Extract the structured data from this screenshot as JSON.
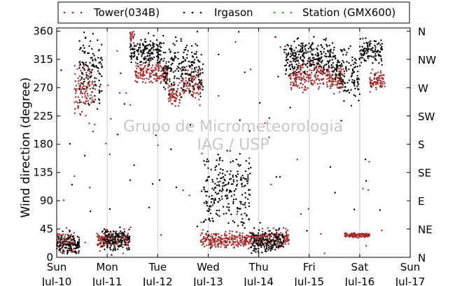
{
  "chart_data": {
    "type": "scatter",
    "title": "",
    "ylabel": "Wind direction (degree)",
    "xlabel": "",
    "ylim": [
      0,
      365
    ],
    "xlim": [
      0,
      7
    ],
    "grid": "vertical lines at day boundaries",
    "legend_placement": "top",
    "watermark": [
      "Grupo de Micrometeorologia",
      "IAG / USP"
    ],
    "yticks": [
      0,
      45,
      90,
      135,
      180,
      225,
      270,
      315,
      360
    ],
    "yticks_right": [
      {
        "value": 0,
        "label": "N"
      },
      {
        "value": 45,
        "label": "NE"
      },
      {
        "value": 90,
        "label": "E"
      },
      {
        "value": 135,
        "label": "SE"
      },
      {
        "value": 180,
        "label": "S"
      },
      {
        "value": 225,
        "label": "SW"
      },
      {
        "value": 270,
        "label": "W"
      },
      {
        "value": 315,
        "label": "NW"
      },
      {
        "value": 360,
        "label": "N"
      }
    ],
    "xticks": [
      {
        "value": 0,
        "day": "Sun",
        "date": "Jul-10"
      },
      {
        "value": 1,
        "day": "Mon",
        "date": "Jul-11"
      },
      {
        "value": 2,
        "day": "Tue",
        "date": "Jul-12"
      },
      {
        "value": 3,
        "day": "Wed",
        "date": "Jul-13"
      },
      {
        "value": 4,
        "day": "Thu",
        "date": "Jul-14"
      },
      {
        "value": 5,
        "day": "Fri",
        "date": "Jul-15"
      },
      {
        "value": 6,
        "day": "Sat",
        "date": "Jul-16"
      },
      {
        "value": 7,
        "day": "Sun",
        "date": "Jul-17"
      }
    ],
    "series": [
      {
        "name": "Tower(034B)",
        "color": "#a52a2a",
        "segments": [
          {
            "from": 0.0,
            "to": 0.35,
            "mean": 25,
            "spread": 14
          },
          {
            "from": 0.35,
            "to": 0.8,
            "mean": 265,
            "spread": 30
          },
          {
            "from": 0.8,
            "to": 1.45,
            "mean": 28,
            "spread": 12
          },
          {
            "from": 1.45,
            "to": 1.55,
            "mean": 350,
            "spread": 10
          },
          {
            "from": 1.55,
            "to": 2.2,
            "mean": 292,
            "spread": 15
          },
          {
            "from": 2.2,
            "to": 2.45,
            "mean": 260,
            "spread": 15
          },
          {
            "from": 2.45,
            "to": 2.85,
            "mean": 275,
            "spread": 20
          },
          {
            "from": 2.85,
            "to": 3.8,
            "mean": 28,
            "spread": 10
          },
          {
            "from": 3.8,
            "to": 4.6,
            "mean": 30,
            "spread": 12
          },
          {
            "from": 4.6,
            "to": 5.25,
            "mean": 290,
            "spread": 20
          },
          {
            "from": 5.25,
            "to": 5.7,
            "mean": 285,
            "spread": 18
          },
          {
            "from": 5.7,
            "to": 6.2,
            "mean": 35,
            "spread": 3
          },
          {
            "from": 6.2,
            "to": 6.5,
            "mean": 282,
            "spread": 12
          }
        ]
      },
      {
        "name": "Irgason",
        "color": "#000000",
        "segments": [
          {
            "from": 0.0,
            "to": 0.45,
            "mean": 22,
            "spread": 14
          },
          {
            "from": 0.45,
            "to": 0.9,
            "mean": 300,
            "spread": 45
          },
          {
            "from": 0.9,
            "to": 1.45,
            "mean": 28,
            "spread": 15
          },
          {
            "from": 1.45,
            "to": 2.1,
            "mean": 328,
            "spread": 18
          },
          {
            "from": 2.1,
            "to": 2.9,
            "mean": 300,
            "spread": 35
          },
          {
            "from": 2.9,
            "to": 3.2,
            "mean": 100,
            "spread": 50
          },
          {
            "from": 3.2,
            "to": 3.85,
            "mean": 105,
            "spread": 45
          },
          {
            "from": 3.85,
            "to": 4.5,
            "mean": 25,
            "spread": 15
          },
          {
            "from": 4.5,
            "to": 5.5,
            "mean": 320,
            "spread": 25
          },
          {
            "from": 5.5,
            "to": 6.0,
            "mean": 295,
            "spread": 35
          },
          {
            "from": 6.0,
            "to": 6.45,
            "mean": 328,
            "spread": 18
          }
        ]
      },
      {
        "name": "Station (GMX600)",
        "color": "#2ca02c",
        "segments": []
      }
    ]
  }
}
